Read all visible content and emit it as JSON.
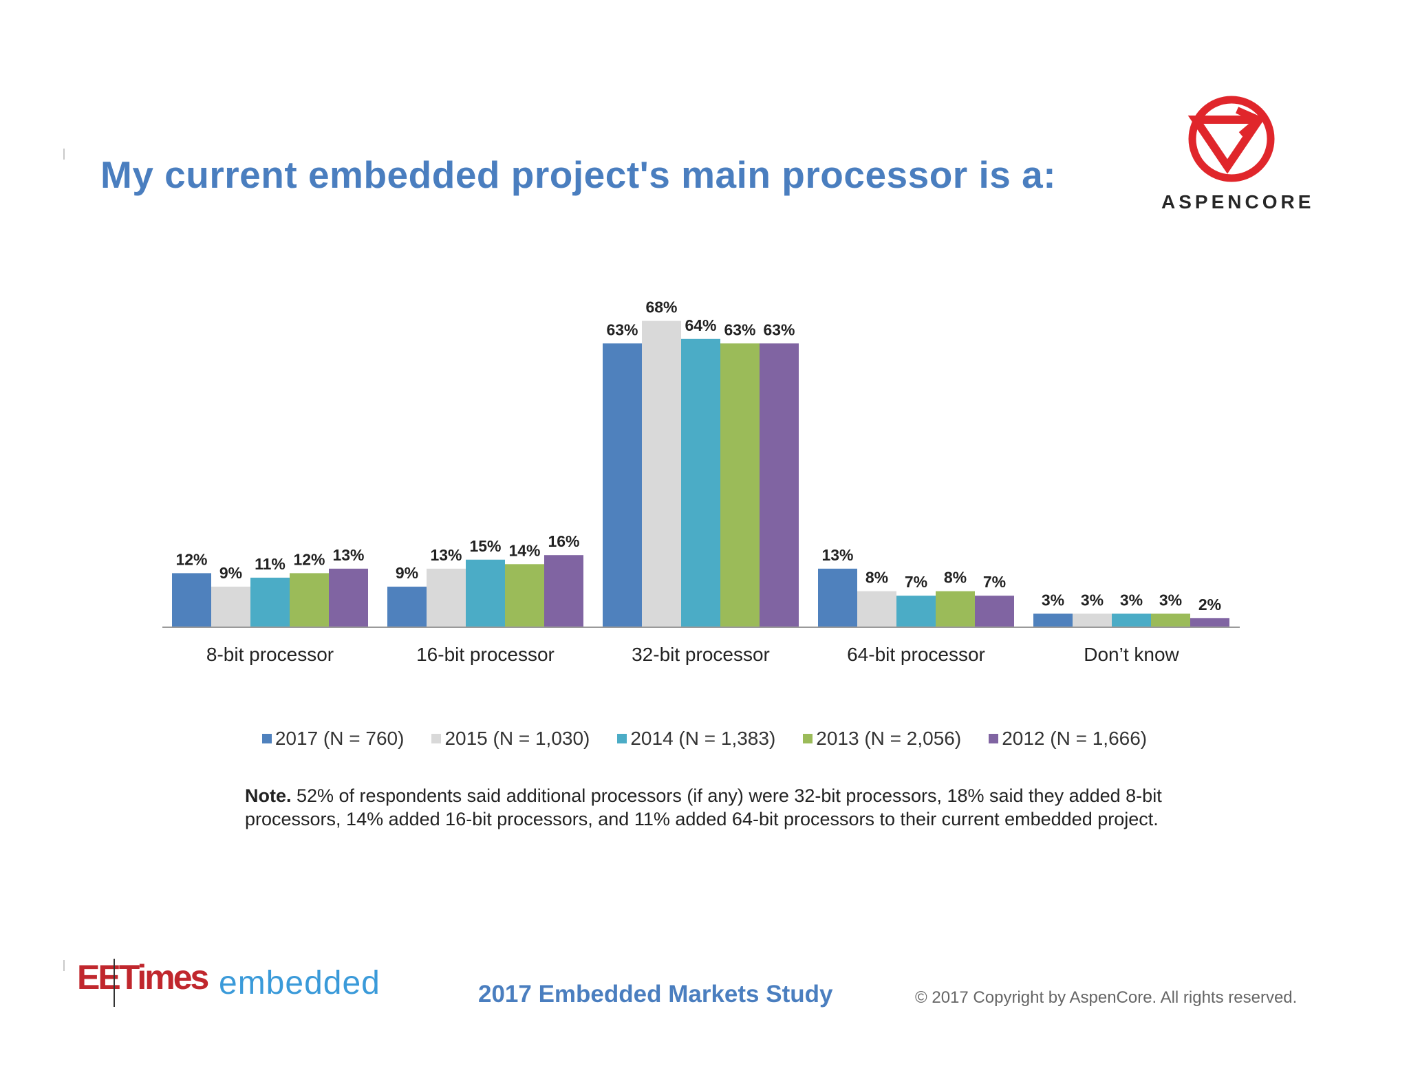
{
  "title": "My current embedded project's main processor is a:",
  "brand": {
    "name": "ASPENCORE",
    "logo_icon": "aspencore-v-circle-logo",
    "color": "#e0262b"
  },
  "chart_data": {
    "type": "bar",
    "categories": [
      "8-bit processor",
      "16-bit processor",
      "32-bit processor",
      "64-bit processor",
      "Don’t know"
    ],
    "series": [
      {
        "name": "2017 (N = 760)",
        "color": "#4f81bd",
        "values": [
          12,
          9,
          63,
          13,
          3
        ],
        "labels": [
          "12%",
          "9%",
          "63%",
          "13%",
          "3%"
        ]
      },
      {
        "name": "2015 (N = 1,030)",
        "color": "#d9d9d9",
        "values": [
          9,
          13,
          68,
          8,
          3
        ],
        "labels": [
          "9%",
          "13%",
          "68%",
          "8%",
          "3%"
        ]
      },
      {
        "name": "2014 (N = 1,383)",
        "color": "#4bacc6",
        "values": [
          11,
          15,
          64,
          7,
          3
        ],
        "labels": [
          "11%",
          "15%",
          "64%",
          "7%",
          "3%"
        ]
      },
      {
        "name": "2013 (N = 2,056)",
        "color": "#9bbb59",
        "values": [
          12,
          14,
          63,
          8,
          3
        ],
        "labels": [
          "12%",
          "14%",
          "63%",
          "8%",
          "3%"
        ]
      },
      {
        "name": "2012 (N = 1,666)",
        "color": "#8064a2",
        "values": [
          13,
          16,
          63,
          7,
          2
        ],
        "labels": [
          "13%",
          "16%",
          "63%",
          "7%",
          "2%"
        ]
      }
    ],
    "ylim": [
      0,
      70
    ],
    "grid": false,
    "legend": "bottom"
  },
  "note": {
    "label": "Note.",
    "text": " 52% of respondents said  additional processors (if any) were 32-bit processors, 18% said they added 8-bit processors, 14% added 16-bit processors, and 11% added 64-bit processors to their current embedded project."
  },
  "footer": {
    "eetimes_logo": "EETimes",
    "embedded_logo": "embedded",
    "study_title": "2017 Embedded Markets Study",
    "copyright": "© 2017 Copyright by AspenCore. All rights reserved."
  }
}
